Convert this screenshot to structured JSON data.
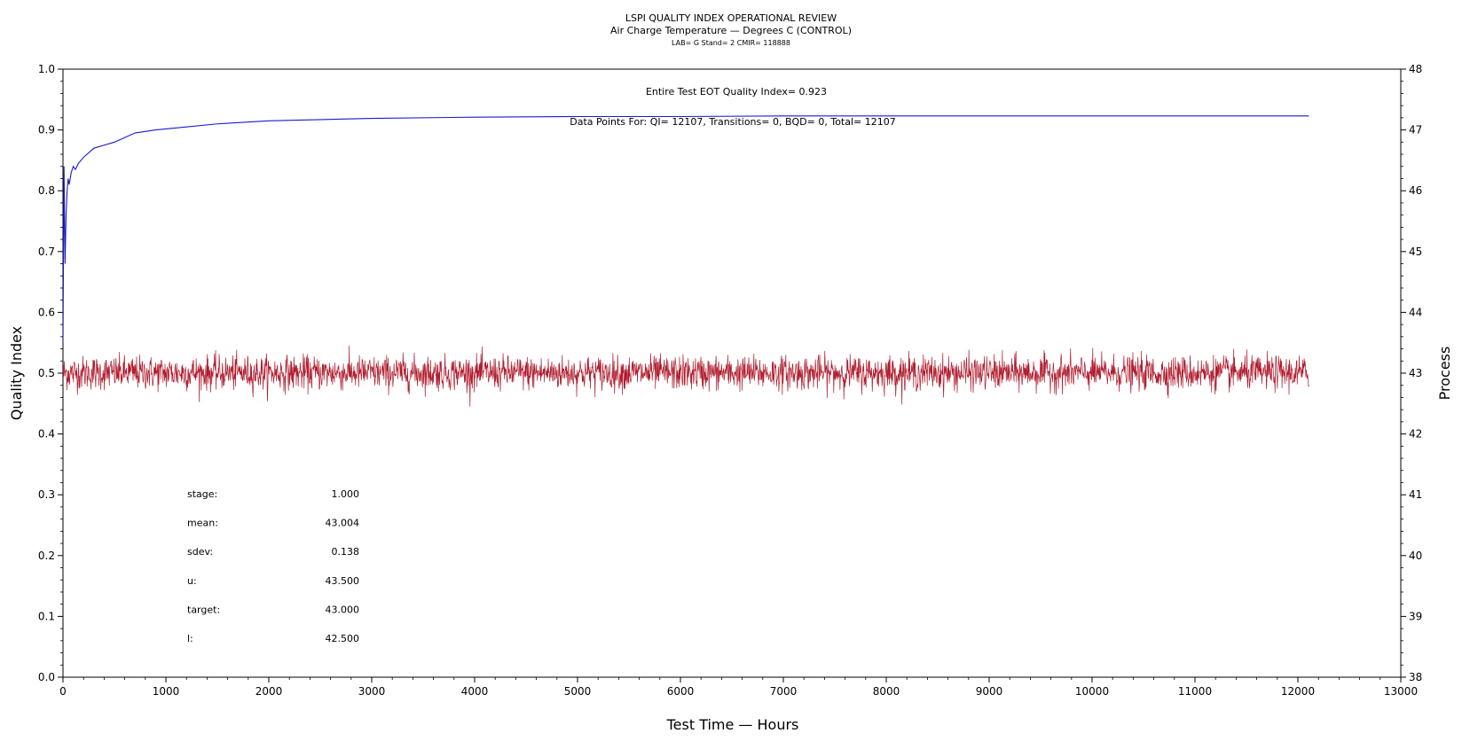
{
  "chart_data": {
    "type": "line",
    "title": "LSPI QUALITY INDEX OPERATIONAL REVIEW",
    "subtitle": "Air Charge Temperature — Degrees C (CONTROL)",
    "subsubtitle": "LAB= G Stand= 2 CMIR= 118888",
    "xlabel": "Test Time — Hours",
    "ylabel_left": "Quality Index",
    "ylabel_right": "Process",
    "xlim": [
      0,
      13000
    ],
    "ylim_left": [
      0,
      1
    ],
    "ylim_right": [
      38,
      48
    ],
    "xticks": [
      "0",
      "1000",
      "2000",
      "3000",
      "4000",
      "5000",
      "6000",
      "7000",
      "8000",
      "9000",
      "10000",
      "11000",
      "12000",
      "13000"
    ],
    "yticks_left": [
      "0.0",
      "0.1",
      "0.2",
      "0.3",
      "0.4",
      "0.5",
      "0.6",
      "0.7",
      "0.8",
      "0.9",
      "1.0"
    ],
    "yticks_right": [
      "38",
      "39",
      "40",
      "41",
      "42",
      "43",
      "44",
      "45",
      "46",
      "47",
      "48"
    ],
    "annotation_qi": "Entire Test EOT Quality Index=   0.923",
    "annotation_points": "Data Points For: QI= 12107, Transitions=     0, BQD=     0, Total= 12107",
    "series": [
      {
        "axis": "left",
        "color": "#1a1acc",
        "x": [
          0,
          10,
          20,
          30,
          40,
          50,
          60,
          80,
          100,
          120,
          150,
          200,
          300,
          400,
          500,
          700,
          900,
          1200,
          1500,
          2000,
          2500,
          3000,
          4000,
          5000,
          6000,
          7000,
          8000,
          9000,
          10000,
          11000,
          12107
        ],
        "values": [
          0.55,
          0.84,
          0.68,
          0.76,
          0.8,
          0.82,
          0.81,
          0.83,
          0.84,
          0.835,
          0.845,
          0.855,
          0.87,
          0.875,
          0.88,
          0.895,
          0.9,
          0.905,
          0.91,
          0.915,
          0.917,
          0.919,
          0.921,
          0.922,
          0.922,
          0.923,
          0.923,
          0.923,
          0.923,
          0.923,
          0.923
        ]
      },
      {
        "axis": "right",
        "color": "#b01c2e",
        "x": [
          0,
          12107
        ],
        "center": 43.004,
        "sdev": 0.138,
        "range": [
          42.4,
          43.7
        ]
      }
    ]
  },
  "stats": [
    {
      "label": "stage:",
      "value": "1.000"
    },
    {
      "label": "mean:",
      "value": "43.004"
    },
    {
      "label": "sdev:",
      "value": "0.138"
    },
    {
      "label": "u:",
      "value": "43.500"
    },
    {
      "label": "target:",
      "value": "43.000"
    },
    {
      "label": "l:",
      "value": "42.500"
    }
  ]
}
